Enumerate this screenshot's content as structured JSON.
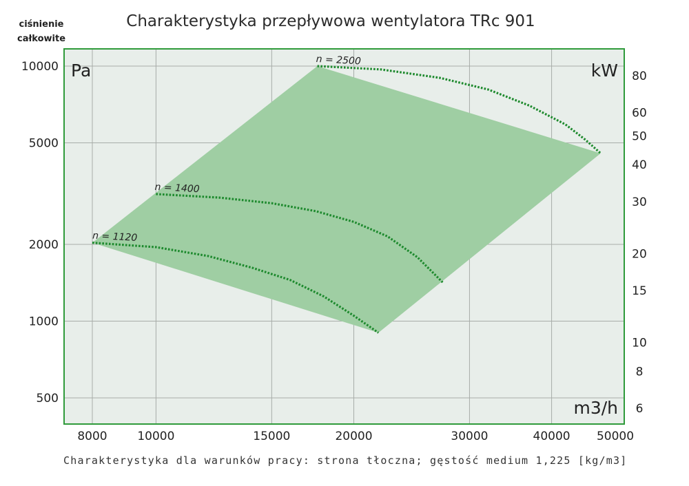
{
  "chart_data": {
    "type": "area",
    "title": "Charakterystyka przepływowa wentylatora TRc 901",
    "ylabel": "ciśnienie całkowite",
    "y_unit": "Pa",
    "x_unit": "m3/h",
    "y2_unit": "kW",
    "x_scale": "log",
    "y_scale": "log",
    "y2_scale": "log",
    "xlim": [
      7500,
      50000
    ],
    "ylim": [
      400,
      12000
    ],
    "x_ticks": [
      8000,
      10000,
      15000,
      20000,
      30000,
      40000,
      50000
    ],
    "y_ticks": [
      500,
      1000,
      2000,
      5000,
      10000
    ],
    "y2_ticks": [
      6,
      8,
      10,
      15,
      20,
      30,
      40,
      50,
      60,
      80
    ],
    "grid": true,
    "operating_region": {
      "x": [
        8000,
        17600,
        47500,
        21800
      ],
      "y": [
        2030,
        10000,
        4550,
        900
      ]
    },
    "series": [
      {
        "name": "n = 1120",
        "x": [
          8000,
          10000,
          12000,
          14000,
          16000,
          18000,
          20000,
          21800
        ],
        "y": [
          2030,
          1950,
          1800,
          1620,
          1450,
          1250,
          1050,
          900
        ]
      },
      {
        "name": "n = 1400",
        "x": [
          10000,
          12500,
          15000,
          17500,
          20000,
          22500,
          25000,
          27300
        ],
        "y": [
          3150,
          3050,
          2900,
          2700,
          2450,
          2150,
          1780,
          1420
        ]
      },
      {
        "name": "n = 2500",
        "x": [
          17600,
          22000,
          27000,
          32000,
          37000,
          42000,
          45000,
          47500
        ],
        "y": [
          10000,
          9700,
          9000,
          8100,
          7000,
          5900,
          5150,
          4550
        ]
      }
    ],
    "footnote": "Charakterystyka dla warunków pracy: strona tłoczna; gęstość medium 1,225 [kg/m3]"
  },
  "colors": {
    "frame": "#2e9a3a",
    "plot_bg": "#e8eeea",
    "region_fill": "#9fcea3",
    "curve": "#1e8a2e",
    "grid": "#a7aca8"
  }
}
